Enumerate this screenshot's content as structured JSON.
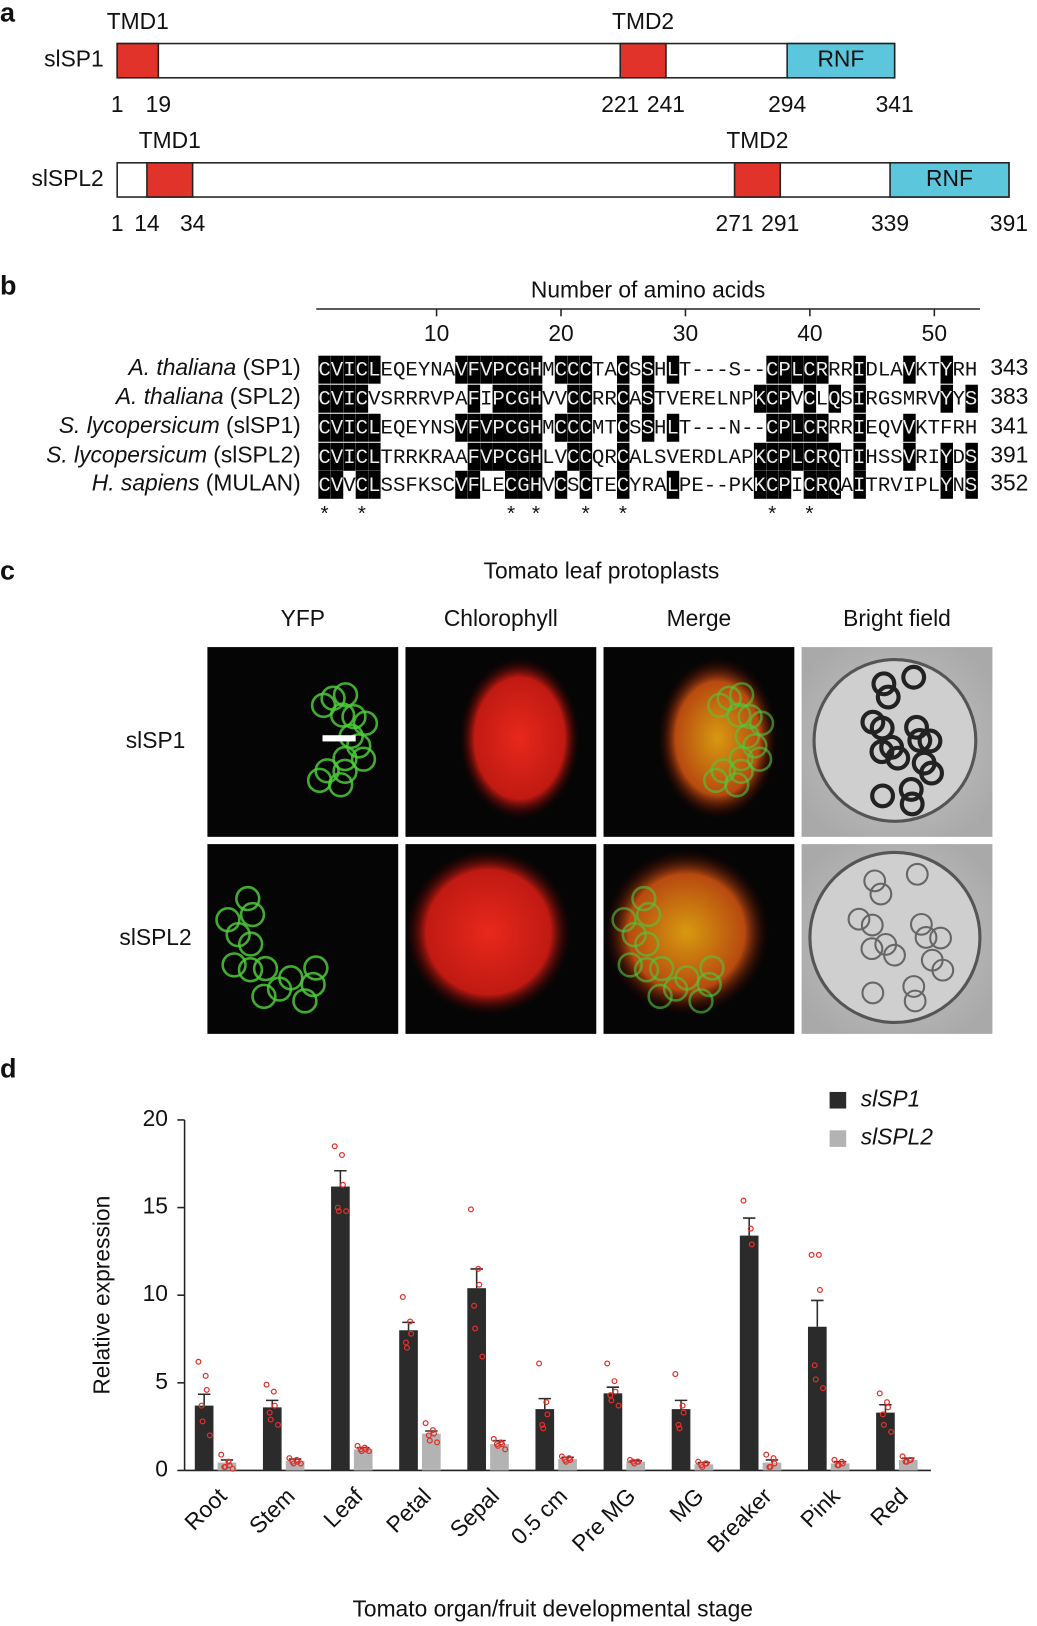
{
  "panel_labels": [
    "a",
    "b",
    "c",
    "d"
  ],
  "panel_a": {
    "proteins": [
      {
        "name": "slSP1",
        "ticks": [
          1,
          19,
          221,
          241,
          294,
          341
        ],
        "domains": [
          {
            "label": "TMD1",
            "start": 1,
            "end": 19,
            "color": "#e2332a"
          },
          {
            "label": "TMD2",
            "start": 221,
            "end": 241,
            "color": "#e2332a"
          },
          {
            "label": "RNF",
            "start": 294,
            "end": 341,
            "color": "#5cc6dd"
          }
        ]
      },
      {
        "name": "slSPL2",
        "ticks": [
          1,
          14,
          34,
          271,
          291,
          339,
          391
        ],
        "domains": [
          {
            "label": "TMD1",
            "start": 14,
            "end": 34,
            "color": "#e2332a"
          },
          {
            "label": "TMD2",
            "start": 271,
            "end": 291,
            "color": "#e2332a"
          },
          {
            "label": "RNF",
            "start": 339,
            "end": 391,
            "color": "#5cc6dd"
          }
        ]
      }
    ]
  },
  "panel_b": {
    "axis_title": "Number of amino acids",
    "ticks": [
      10,
      20,
      30,
      40,
      50
    ],
    "rows": [
      {
        "species": "A. thaliana",
        "protein": "(SP1)",
        "sequence": "CVICLEQEYNAVFVPCGHMCCCTACSSHLT---S--CPLCRRRIDLAVKTYRH",
        "end": 343
      },
      {
        "species": "A. thaliana",
        "protein": "(SPL2)",
        "sequence": "CVICVSRRRVPAFIPCGHVVCCRRCASTVERELNPKCPVCLQSIRGSMRVYYS",
        "end": 383
      },
      {
        "species": "S. lycopersicum",
        "protein": "(slSP1)",
        "sequence": "CVICLEQEYNSVFVPCGHMCCCMTCSSHLT---N--CPLCRRRIEQVVKTFRH",
        "end": 341
      },
      {
        "species": "S. lycopersicum",
        "protein": "(slSPL2)",
        "sequence": "CVICLTRRKRAAFVPCGHLVCCQRCALSVERDLAPKCPLCRQTIHSSVRIYDS",
        "end": 391
      },
      {
        "species": "H. sapiens",
        "protein": "(MULAN)",
        "sequence": "CVVCLSSFKSCVFLECGHVCSCTECYRALPE--PKKCPICRQAITRVIPLYNS",
        "end": 352
      }
    ],
    "conservation": "*  *           * *   *  *           *  *"
  },
  "panel_c": {
    "title": "Tomato leaf protoplasts",
    "columns": [
      "YFP",
      "Chlorophyll",
      "Merge",
      "Bright field"
    ],
    "rows": [
      "slSP1",
      "slSPL2"
    ]
  },
  "chart_data": {
    "type": "bar",
    "y_label": "Relative expression",
    "x_label": "Tomato organ/fruit developmental stage",
    "categories": [
      "Root",
      "Stem",
      "Leaf",
      "Petal",
      "Sepal",
      "0.5 cm",
      "Pre MG",
      "MG",
      "Breaker",
      "Pink",
      "Red"
    ],
    "ylim": [
      0,
      20
    ],
    "yticks": [
      0,
      5,
      10,
      15,
      20
    ],
    "legend": "top-right",
    "point_color": "#e0302a",
    "series": [
      {
        "name": "slSP1",
        "color": "#2b2b2b",
        "values": [
          3.7,
          3.6,
          16.2,
          8.0,
          10.4,
          3.5,
          4.4,
          3.5,
          13.4,
          8.2,
          3.3
        ],
        "errors": [
          0.65,
          0.4,
          0.9,
          0.45,
          1.1,
          0.6,
          0.35,
          0.5,
          1.0,
          1.5,
          0.45
        ],
        "points": [
          [
            6.2,
            5.4,
            4.6,
            3.7,
            2.8,
            2.0
          ],
          [
            4.9,
            4.5,
            3.7,
            3.3,
            2.9,
            2.6
          ],
          [
            18.5,
            18.0,
            16.3,
            15.0,
            14.8,
            14.8
          ],
          [
            9.9,
            8.5,
            7.8,
            7.3,
            7.0
          ],
          [
            14.9,
            11.5,
            10.6,
            9.4,
            8.1,
            6.5
          ],
          [
            6.1,
            3.9,
            3.2,
            2.6,
            2.4
          ],
          [
            6.1,
            5.1,
            4.5,
            4.3,
            4.0,
            3.7
          ],
          [
            5.5,
            3.7,
            3.3,
            2.6,
            2.4
          ],
          [
            15.4,
            13.8,
            12.9
          ],
          [
            12.3,
            12.3,
            10.3,
            6.0,
            5.2,
            4.7
          ],
          [
            4.4,
            3.9,
            3.6,
            3.2,
            2.6,
            2.2
          ]
        ]
      },
      {
        "name": "slSPL2",
        "color": "#b3b3b3",
        "values": [
          0.45,
          0.55,
          1.2,
          2.1,
          1.5,
          0.65,
          0.5,
          0.35,
          0.45,
          0.4,
          0.6
        ],
        "errors": [
          0.15,
          0.1,
          0.1,
          0.15,
          0.2,
          0.1,
          0.05,
          0.1,
          0.15,
          0.1,
          0.1
        ],
        "points": [
          [
            0.9,
            0.5,
            0.3,
            0.2,
            0.2,
            0.1
          ],
          [
            0.7,
            0.6,
            0.5,
            0.5,
            0.4,
            0.4
          ],
          [
            1.4,
            1.3,
            1.2,
            1.2,
            1.1,
            1.1
          ],
          [
            2.7,
            2.3,
            2.1,
            2.0,
            1.7,
            1.6
          ],
          [
            1.8,
            1.6,
            1.5,
            1.5,
            1.4,
            1.2
          ],
          [
            0.8,
            0.7,
            0.6,
            0.6,
            0.5
          ],
          [
            0.6,
            0.5,
            0.5,
            0.5,
            0.4
          ],
          [
            0.5,
            0.4,
            0.4,
            0.3,
            0.2
          ],
          [
            0.9,
            0.7,
            0.4,
            0.2,
            0.2
          ],
          [
            0.6,
            0.5,
            0.4,
            0.3,
            0.3
          ],
          [
            0.8,
            0.6,
            0.6,
            0.5,
            0.5
          ]
        ]
      }
    ]
  }
}
